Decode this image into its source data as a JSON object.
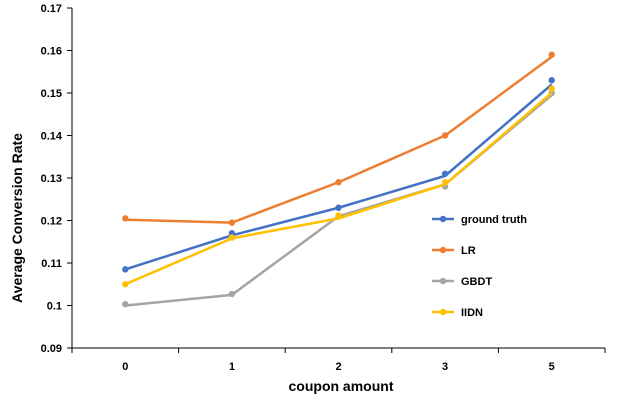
{
  "chart_data": {
    "type": "line",
    "title": "",
    "xlabel": "coupon amount",
    "ylabel": "Average Conversion Rate",
    "categories": [
      "0",
      "1",
      "2",
      "3",
      "5"
    ],
    "ylim": [
      0.09,
      0.17
    ],
    "yticks": [
      "0.09",
      "0.1",
      "0.11",
      "0.12",
      "0.13",
      "0.14",
      "0.15",
      "0.16",
      "0.17"
    ],
    "grid": false,
    "legend_position": "right",
    "series": [
      {
        "name": "ground truth",
        "color": "#4472C4",
        "values": [
          0.1085,
          0.117,
          0.123,
          0.131,
          0.153
        ]
      },
      {
        "name": "LR",
        "color": "#ED7D31",
        "values": [
          0.1205,
          0.1195,
          0.129,
          0.14,
          0.159
        ]
      },
      {
        "name": "GBDT",
        "color": "#A5A5A5",
        "values": [
          0.1003,
          0.1027,
          0.121,
          0.128,
          0.15
        ]
      },
      {
        "name": "IIDN",
        "color": "#FFC000",
        "values": [
          0.105,
          0.116,
          0.1212,
          0.129,
          0.151
        ]
      }
    ],
    "fitted_series": [
      {
        "name": "ground truth",
        "values": [
          0.1085,
          0.1165,
          0.123,
          0.1305,
          0.152
        ]
      },
      {
        "name": "LR",
        "values": [
          0.1202,
          0.1195,
          0.129,
          0.14,
          0.1585
        ]
      },
      {
        "name": "GBDT",
        "values": [
          0.1,
          0.1025,
          0.121,
          0.1285,
          0.1495
        ]
      },
      {
        "name": "IIDN",
        "values": [
          0.105,
          0.1158,
          0.1205,
          0.1285,
          0.15
        ]
      }
    ]
  }
}
